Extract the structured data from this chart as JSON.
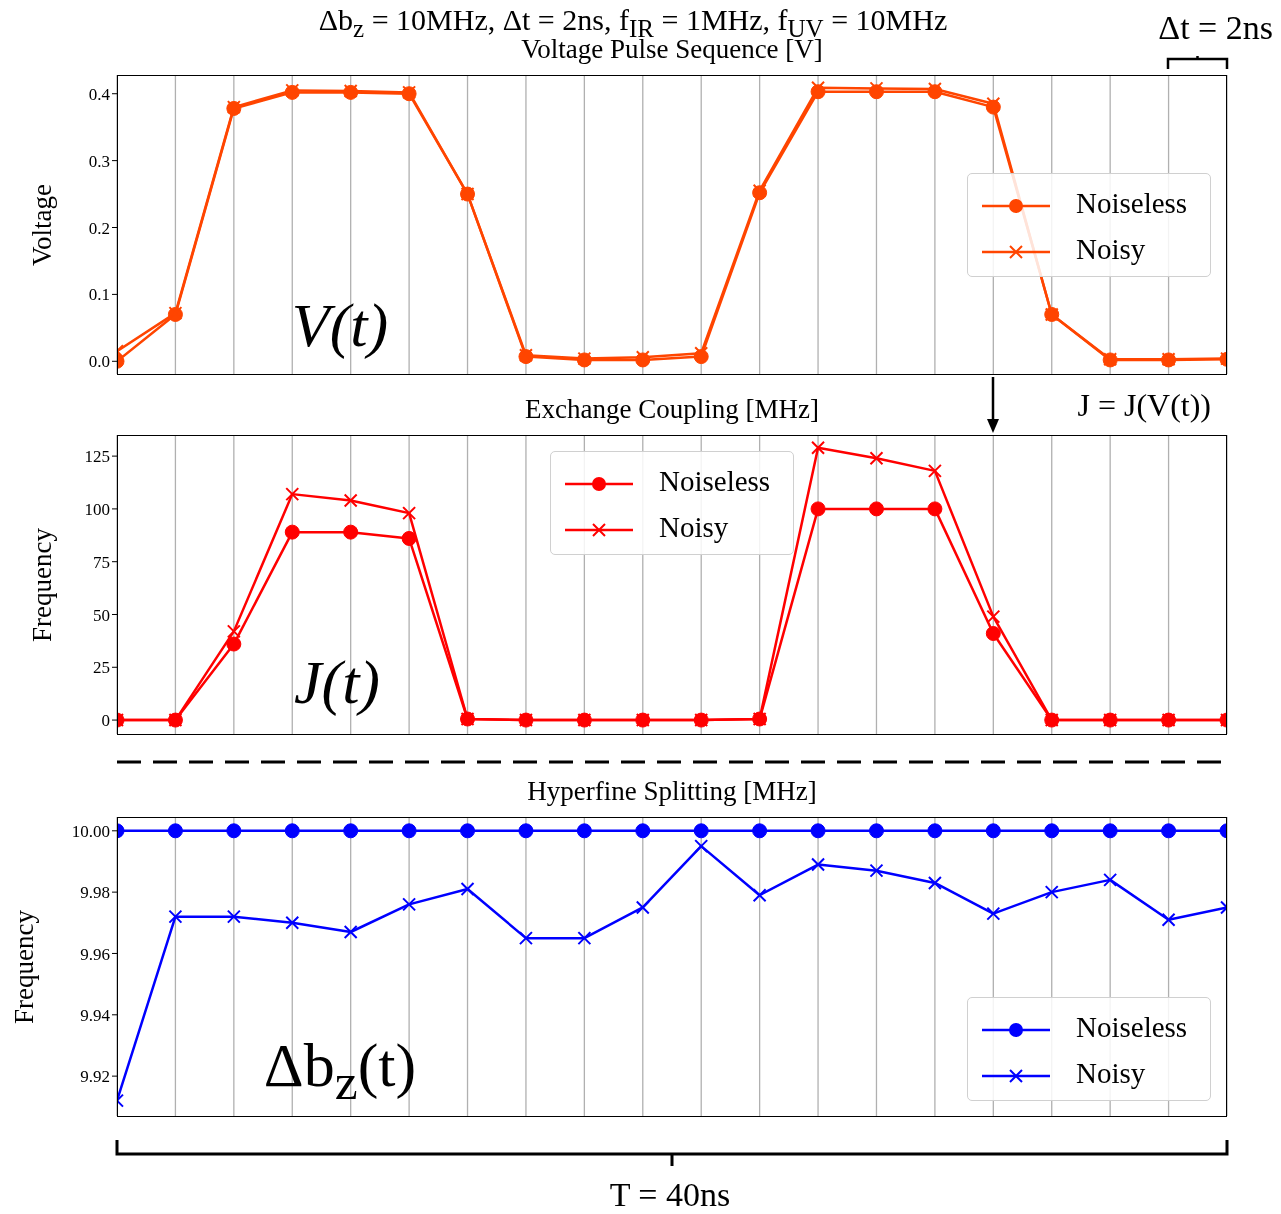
{
  "chart_data": [
    {
      "type": "line",
      "title": "Voltage Pulse Sequence [V]",
      "ylabel": "Voltage",
      "categories": [
        null,
        null,
        null,
        null,
        null,
        null,
        null,
        null,
        null,
        null,
        null,
        null,
        null,
        null,
        null,
        null,
        null,
        null,
        null,
        null
      ],
      "series": [
        {
          "name": "Noiseless",
          "color": "#ff4500",
          "marker": "circle",
          "values": [
            0.0,
            0.07,
            0.378,
            0.402,
            0.402,
            0.4,
            0.25,
            0.007,
            0.002,
            0.002,
            0.007,
            0.252,
            0.403,
            0.403,
            0.403,
            0.38,
            0.07,
            0.002,
            0.002,
            0.003
          ]
        },
        {
          "name": "Noisy",
          "color": "#ff4500",
          "marker": "cross",
          "values": [
            0.015,
            0.072,
            0.38,
            0.405,
            0.404,
            0.402,
            0.25,
            0.009,
            0.004,
            0.006,
            0.012,
            0.255,
            0.409,
            0.408,
            0.407,
            0.385,
            0.07,
            0.003,
            0.003,
            0.004
          ]
        }
      ],
      "ylim": [
        -0.019,
        0.428
      ],
      "yticks": [
        {
          "value": 0,
          "label": "0.0"
        },
        {
          "value": 0.1,
          "label": "0.1"
        },
        {
          "value": 0.2,
          "label": "0.2"
        },
        {
          "value": 0.3,
          "label": "0.3"
        },
        {
          "value": 0.4,
          "label": "0.4"
        }
      ],
      "grid": "x",
      "legend": "right",
      "tick_labels": "y",
      "annotations": [
        "Δb$_{z}$ = 10MHz, Δt = 2ns, f$_{IR}$ = 1MHz, f$_{UV}$ = 10MHz",
        "V(t)",
        "Δt = 2ns"
      ]
    },
    {
      "type": "line",
      "title": "Exchange Coupling [MHz]",
      "ylabel": "Frequency",
      "categories": [
        null,
        null,
        null,
        null,
        null,
        null,
        null,
        null,
        null,
        null,
        null,
        null,
        null,
        null,
        null,
        null,
        null,
        null,
        null,
        null
      ],
      "series": [
        {
          "name": "Noiseless",
          "color": "#ff0000",
          "marker": "circle",
          "values": [
            0,
            0,
            36,
            89,
            89,
            86,
            0.5,
            0,
            0,
            0,
            0,
            0.5,
            100,
            100,
            100,
            41,
            0,
            0,
            0,
            0
          ]
        },
        {
          "name": "Noisy",
          "color": "#ff0000",
          "marker": "cross",
          "values": [
            0,
            0,
            42,
            107,
            104,
            98,
            0.5,
            0,
            0,
            0,
            0,
            0.5,
            129,
            124,
            118,
            49,
            0,
            0,
            0,
            0
          ]
        }
      ],
      "ylim": [
        -6.6,
        135
      ],
      "yticks": [
        0,
        25,
        50,
        75,
        100,
        125
      ],
      "grid": "x",
      "legend": "top",
      "tick_labels": "y",
      "annotations": [
        "J(t)",
        "J = J(V(t))"
      ]
    },
    {
      "type": "line",
      "title": "Hyperfine Splitting [MHz]",
      "ylabel": "Frequency",
      "categories": [
        null,
        null,
        null,
        null,
        null,
        null,
        null,
        null,
        null,
        null,
        null,
        null,
        null,
        null,
        null,
        null,
        null,
        null,
        null,
        null
      ],
      "series": [
        {
          "name": "Noiseless",
          "color": "#0000ff",
          "marker": "circle",
          "values": [
            10,
            10,
            10,
            10,
            10,
            10,
            10,
            10,
            10,
            10,
            10,
            10,
            10,
            10,
            10,
            10,
            10,
            10,
            10,
            10
          ]
        },
        {
          "name": "Noisy",
          "color": "#0000ff",
          "marker": "cross",
          "values": [
            9.912,
            9.972,
            9.972,
            9.97,
            9.967,
            9.976,
            9.981,
            9.965,
            9.965,
            9.975,
            9.995,
            9.979,
            9.989,
            9.987,
            9.983,
            9.973,
            9.98,
            9.984,
            9.971,
            9.975
          ]
        }
      ],
      "ylim": [
        9.907,
        10.0045
      ],
      "yticks": [
        {
          "value": 9.92,
          "label": "9.92"
        },
        {
          "value": 9.94,
          "label": "9.94"
        },
        {
          "value": 9.96,
          "label": "9.96"
        },
        {
          "value": 9.98,
          "label": "9.98"
        },
        {
          "value": 10,
          "label": "10.00"
        }
      ],
      "grid": "x",
      "legend": "bottom right",
      "tick_labels": "y",
      "annotations": [
        "Δb$_{z}$(t)",
        "T = 40ns"
      ]
    }
  ]
}
